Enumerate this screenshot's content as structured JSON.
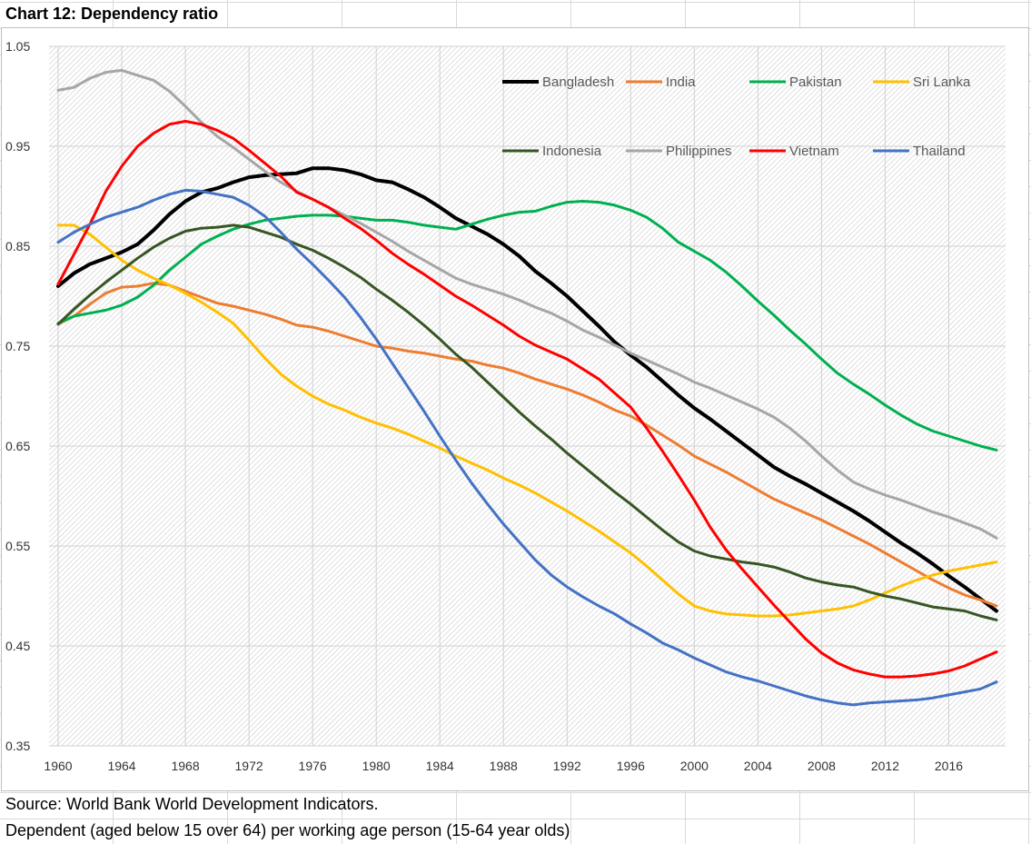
{
  "title": "Chart 12: Dependency ratio",
  "footer": {
    "source": "Source: World Bank World Development Indicators.",
    "note": "Dependent (aged below 15 over 64) per working age person (15-64 year olds)"
  },
  "chart_data": {
    "type": "line",
    "title": "",
    "xlabel": "",
    "ylabel": "",
    "xlim": [
      1960,
      2019
    ],
    "ylim": [
      0.35,
      1.05
    ],
    "x_ticks": [
      "1960",
      "1964",
      "1968",
      "1972",
      "1976",
      "1980",
      "1984",
      "1988",
      "1992",
      "1996",
      "2000",
      "2004",
      "2008",
      "2012",
      "2016"
    ],
    "y_ticks": [
      "1.05",
      "0.95",
      "0.85",
      "0.75",
      "0.65",
      "0.55",
      "0.45",
      "0.35"
    ],
    "grid": true,
    "legend_position": "top-right",
    "x": [
      1960,
      1961,
      1962,
      1963,
      1964,
      1965,
      1966,
      1967,
      1968,
      1969,
      1970,
      1971,
      1972,
      1973,
      1974,
      1975,
      1976,
      1977,
      1978,
      1979,
      1980,
      1981,
      1982,
      1983,
      1984,
      1985,
      1986,
      1987,
      1988,
      1989,
      1990,
      1991,
      1992,
      1993,
      1994,
      1995,
      1996,
      1997,
      1998,
      1999,
      2000,
      2001,
      2002,
      2003,
      2004,
      2005,
      2006,
      2007,
      2008,
      2009,
      2010,
      2011,
      2012,
      2013,
      2014,
      2015,
      2016,
      2017,
      2018,
      2019
    ],
    "series": [
      {
        "name": "Bangladesh",
        "color": "#000000",
        "width": 4,
        "values": [
          0.81,
          0.823,
          0.832,
          0.838,
          0.844,
          0.852,
          0.866,
          0.882,
          0.895,
          0.904,
          0.908,
          0.914,
          0.919,
          0.921,
          0.922,
          0.923,
          0.928,
          0.928,
          0.926,
          0.922,
          0.916,
          0.914,
          0.907,
          0.899,
          0.889,
          0.878,
          0.87,
          0.862,
          0.852,
          0.84,
          0.825,
          0.813,
          0.8,
          0.785,
          0.77,
          0.754,
          0.741,
          0.729,
          0.715,
          0.701,
          0.688,
          0.677,
          0.665,
          0.653,
          0.641,
          0.629,
          0.62,
          0.612,
          0.603,
          0.594,
          0.585,
          0.575,
          0.564,
          0.553,
          0.543,
          0.532,
          0.52,
          0.509,
          0.497,
          0.485
        ]
      },
      {
        "name": "India",
        "color": "#ED7D31",
        "width": 3,
        "values": [
          0.772,
          0.78,
          0.792,
          0.803,
          0.809,
          0.81,
          0.813,
          0.811,
          0.805,
          0.799,
          0.793,
          0.79,
          0.786,
          0.782,
          0.777,
          0.771,
          0.769,
          0.765,
          0.76,
          0.755,
          0.75,
          0.748,
          0.745,
          0.743,
          0.74,
          0.737,
          0.735,
          0.731,
          0.728,
          0.723,
          0.717,
          0.712,
          0.707,
          0.701,
          0.694,
          0.686,
          0.68,
          0.671,
          0.661,
          0.651,
          0.64,
          0.632,
          0.624,
          0.615,
          0.606,
          0.597,
          0.59,
          0.583,
          0.576,
          0.568,
          0.56,
          0.552,
          0.543,
          0.534,
          0.525,
          0.516,
          0.508,
          0.501,
          0.496,
          0.49
        ]
      },
      {
        "name": "Pakistan",
        "color": "#00B050",
        "width": 3,
        "values": [
          0.773,
          0.78,
          0.783,
          0.786,
          0.791,
          0.799,
          0.811,
          0.826,
          0.839,
          0.852,
          0.86,
          0.867,
          0.872,
          0.876,
          0.878,
          0.88,
          0.881,
          0.881,
          0.88,
          0.878,
          0.876,
          0.876,
          0.874,
          0.871,
          0.869,
          0.867,
          0.872,
          0.877,
          0.881,
          0.884,
          0.885,
          0.89,
          0.894,
          0.895,
          0.894,
          0.891,
          0.886,
          0.879,
          0.868,
          0.854,
          0.845,
          0.836,
          0.824,
          0.81,
          0.795,
          0.781,
          0.766,
          0.752,
          0.737,
          0.723,
          0.712,
          0.702,
          0.691,
          0.681,
          0.672,
          0.665,
          0.66,
          0.655,
          0.65,
          0.646
        ]
      },
      {
        "name": "Sri Lanka",
        "color": "#FFC000",
        "width": 3,
        "values": [
          0.871,
          0.871,
          0.862,
          0.849,
          0.836,
          0.826,
          0.818,
          0.811,
          0.803,
          0.794,
          0.784,
          0.773,
          0.756,
          0.738,
          0.722,
          0.71,
          0.7,
          0.692,
          0.686,
          0.679,
          0.673,
          0.668,
          0.662,
          0.655,
          0.648,
          0.64,
          0.633,
          0.626,
          0.618,
          0.611,
          0.603,
          0.594,
          0.585,
          0.575,
          0.565,
          0.554,
          0.543,
          0.53,
          0.516,
          0.502,
          0.49,
          0.485,
          0.482,
          0.481,
          0.48,
          0.48,
          0.481,
          0.483,
          0.485,
          0.487,
          0.49,
          0.496,
          0.503,
          0.51,
          0.516,
          0.521,
          0.525,
          0.528,
          0.531,
          0.534
        ]
      },
      {
        "name": "Indonesia",
        "color": "#375623",
        "width": 3,
        "values": [
          0.772,
          0.787,
          0.801,
          0.814,
          0.826,
          0.838,
          0.849,
          0.858,
          0.865,
          0.868,
          0.869,
          0.871,
          0.869,
          0.864,
          0.859,
          0.852,
          0.846,
          0.838,
          0.829,
          0.819,
          0.807,
          0.796,
          0.784,
          0.771,
          0.757,
          0.742,
          0.729,
          0.714,
          0.699,
          0.684,
          0.67,
          0.657,
          0.643,
          0.63,
          0.617,
          0.604,
          0.592,
          0.579,
          0.566,
          0.554,
          0.545,
          0.54,
          0.537,
          0.534,
          0.532,
          0.529,
          0.524,
          0.518,
          0.514,
          0.511,
          0.509,
          0.504,
          0.5,
          0.497,
          0.493,
          0.489,
          0.487,
          0.485,
          0.48,
          0.476
        ]
      },
      {
        "name": "Philippines",
        "color": "#A6A6A6",
        "width": 3,
        "values": [
          1.006,
          1.009,
          1.018,
          1.024,
          1.026,
          1.021,
          1.016,
          1.005,
          0.99,
          0.974,
          0.96,
          0.949,
          0.937,
          0.925,
          0.914,
          0.905,
          0.897,
          0.889,
          0.881,
          0.873,
          0.864,
          0.855,
          0.845,
          0.836,
          0.827,
          0.818,
          0.812,
          0.807,
          0.802,
          0.796,
          0.789,
          0.783,
          0.775,
          0.766,
          0.759,
          0.751,
          0.743,
          0.736,
          0.729,
          0.722,
          0.714,
          0.708,
          0.701,
          0.694,
          0.687,
          0.679,
          0.668,
          0.655,
          0.64,
          0.626,
          0.614,
          0.607,
          0.601,
          0.596,
          0.59,
          0.584,
          0.579,
          0.573,
          0.567,
          0.558
        ]
      },
      {
        "name": "Vietnam",
        "color": "#FF0000",
        "width": 3,
        "values": [
          0.812,
          0.842,
          0.872,
          0.905,
          0.93,
          0.95,
          0.963,
          0.972,
          0.975,
          0.972,
          0.966,
          0.958,
          0.946,
          0.933,
          0.92,
          0.904,
          0.897,
          0.889,
          0.878,
          0.868,
          0.856,
          0.843,
          0.832,
          0.822,
          0.811,
          0.8,
          0.791,
          0.781,
          0.771,
          0.76,
          0.751,
          0.744,
          0.737,
          0.727,
          0.717,
          0.703,
          0.689,
          0.668,
          0.645,
          0.621,
          0.596,
          0.569,
          0.546,
          0.527,
          0.509,
          0.491,
          0.474,
          0.457,
          0.443,
          0.433,
          0.426,
          0.422,
          0.419,
          0.419,
          0.42,
          0.422,
          0.425,
          0.43,
          0.437,
          0.444
        ]
      },
      {
        "name": "Thailand",
        "color": "#4472C4",
        "width": 3,
        "values": [
          0.854,
          0.864,
          0.872,
          0.879,
          0.884,
          0.889,
          0.896,
          0.902,
          0.906,
          0.905,
          0.902,
          0.899,
          0.891,
          0.88,
          0.864,
          0.847,
          0.832,
          0.816,
          0.799,
          0.779,
          0.757,
          0.733,
          0.709,
          0.685,
          0.66,
          0.636,
          0.613,
          0.592,
          0.572,
          0.554,
          0.536,
          0.521,
          0.509,
          0.499,
          0.49,
          0.482,
          0.472,
          0.463,
          0.453,
          0.446,
          0.438,
          0.431,
          0.424,
          0.419,
          0.415,
          0.41,
          0.405,
          0.4,
          0.396,
          0.393,
          0.391,
          0.393,
          0.394,
          0.395,
          0.396,
          0.398,
          0.401,
          0.404,
          0.407,
          0.414
        ]
      }
    ]
  }
}
